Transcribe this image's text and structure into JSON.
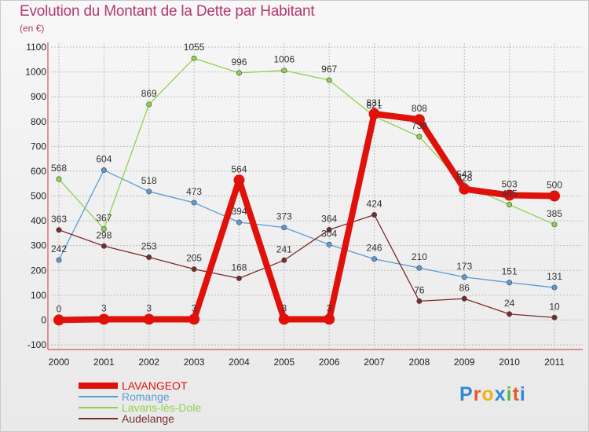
{
  "title": "Evolution du Montant de la Dette par Habitant",
  "subtitle": "(en €)",
  "logo": {
    "letters": [
      "P",
      "r",
      "o",
      "x",
      "i",
      "t",
      "i"
    ],
    "colors": [
      "#2e8ad8",
      "#e85a2a",
      "#f2b21a",
      "#2e8ad8",
      "#5bb547",
      "#e85a2a",
      "#2e8ad8"
    ]
  },
  "chart_data": {
    "type": "line",
    "title": "Evolution du Montant de la Dette par Habitant",
    "subtitle": "(en €)",
    "x": [
      "2000",
      "2001",
      "2002",
      "2003",
      "2004",
      "2005",
      "2006",
      "2007",
      "2008",
      "2009",
      "2010",
      "2011"
    ],
    "ylim": [
      -100,
      1100
    ],
    "yticks": [
      -100,
      0,
      100,
      200,
      300,
      400,
      500,
      600,
      700,
      800,
      900,
      1000,
      1100
    ],
    "grid": true,
    "legend_position": "bottom-left",
    "series": [
      {
        "name": "LAVANGEOT",
        "color": "#e0110b",
        "values": [
          0,
          3,
          3,
          3,
          564,
          3,
          3,
          831,
          808,
          528,
          503,
          500
        ]
      },
      {
        "name": "Romange",
        "color": "#5b9bd5",
        "values": [
          242,
          604,
          518,
          473,
          394,
          373,
          304,
          246,
          210,
          173,
          151,
          131
        ]
      },
      {
        "name": "Lavans-lès-Dole",
        "color": "#8fd14f",
        "values": [
          568,
          367,
          869,
          1055,
          996,
          1006,
          967,
          821,
          739,
          543,
          465,
          385
        ]
      },
      {
        "name": "Audelange",
        "color": "#7a2a2a",
        "values": [
          363,
          298,
          253,
          205,
          168,
          241,
          364,
          424,
          76,
          86,
          24,
          10
        ]
      }
    ]
  }
}
